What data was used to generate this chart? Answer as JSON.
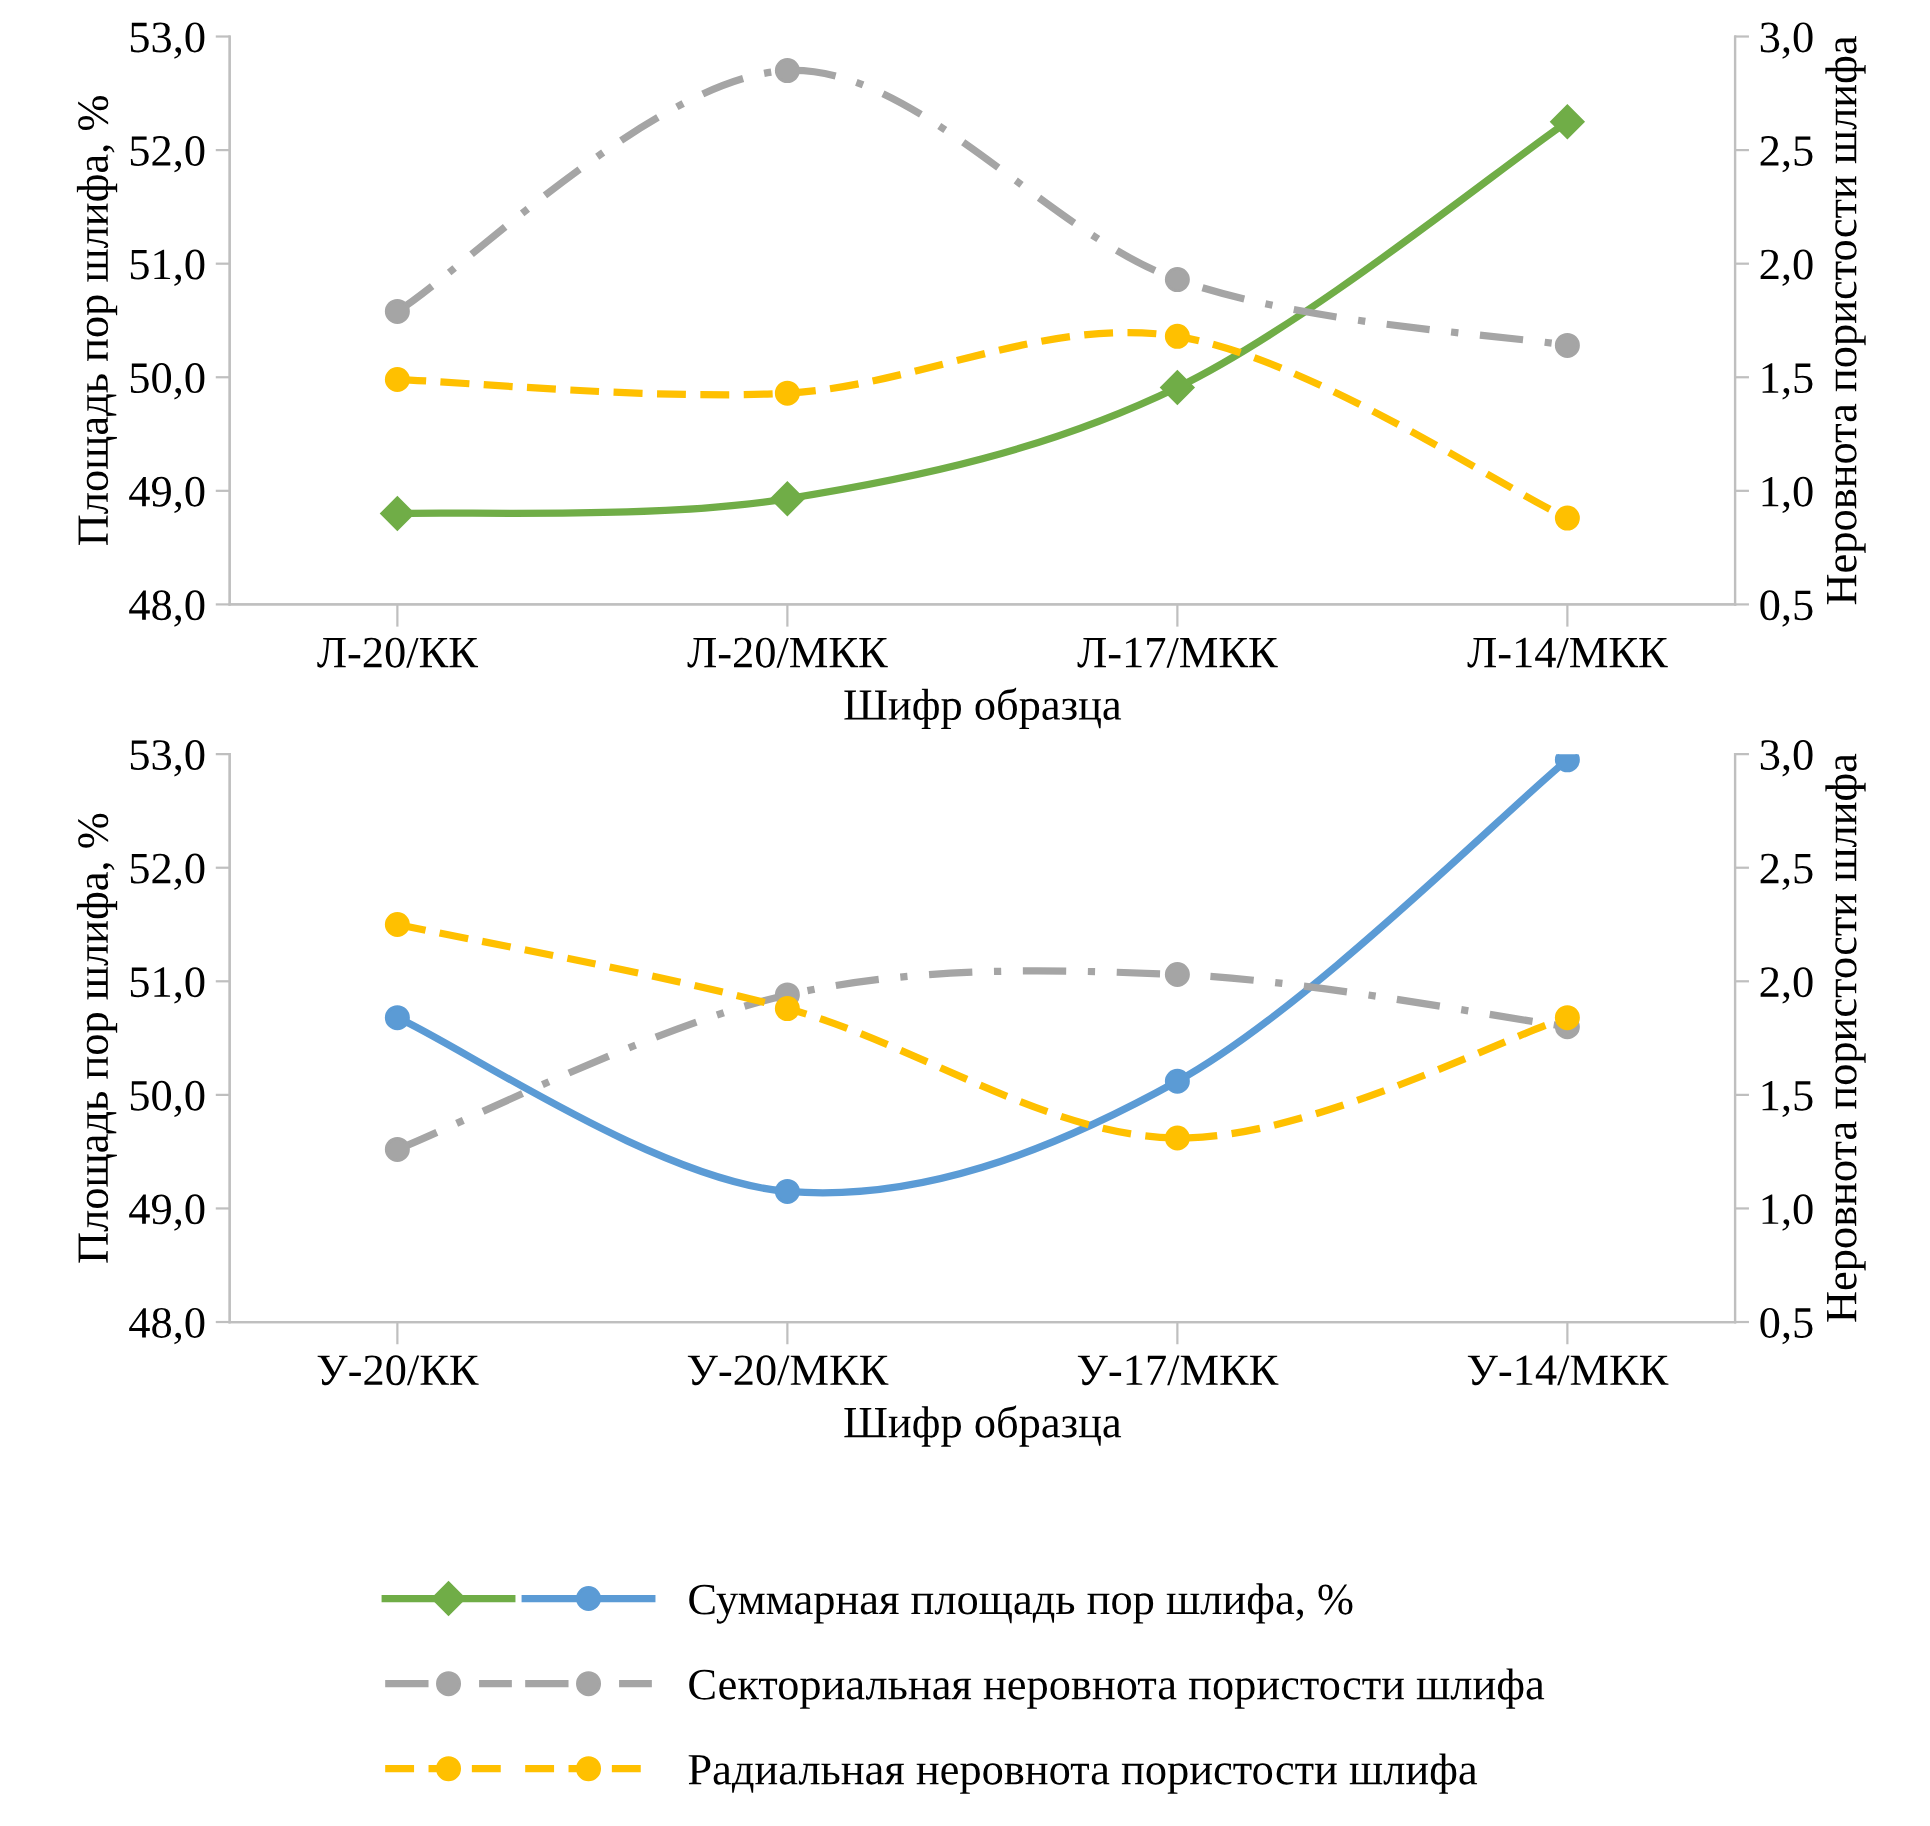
{
  "chart_data": [
    {
      "type": "line",
      "xlabel": "Шифр образца",
      "ylabel": "Площадь пор шлифа, %",
      "y2label": "Неровнота пористости шлифа",
      "categories": [
        "Л-20/КК",
        "Л-20/МКК",
        "Л-17/МКК",
        "Л-14/МКК"
      ],
      "ylim": [
        48,
        53
      ],
      "yticks": [
        {
          "value": 48,
          "label": "48,0"
        },
        {
          "value": 49,
          "label": "49,0"
        },
        {
          "value": 50,
          "label": "50,0"
        },
        {
          "value": 51,
          "label": "51,0"
        },
        {
          "value": 52,
          "label": "52,0"
        },
        {
          "value": 53,
          "label": "53,0"
        }
      ],
      "y2lim": [
        0.5,
        3
      ],
      "y2ticks": [
        {
          "value": 0.5,
          "label": "0,5"
        },
        {
          "value": 1,
          "label": "1,0"
        },
        {
          "value": 1.5,
          "label": "1,5"
        },
        {
          "value": 2,
          "label": "2,0"
        },
        {
          "value": 2.5,
          "label": "2,5"
        },
        {
          "value": 3,
          "label": "3,0"
        }
      ],
      "grid": false,
      "series": [
        {
          "color": "#70ad47",
          "values": [
            48.8,
            48.93,
            49.91,
            52.25
          ],
          "marker": "diamond",
          "line_style": "solid"
        },
        {
          "color": "#a5a5a5",
          "values": [
            1.79,
            2.85,
            1.93,
            1.64
          ],
          "axis": "y2",
          "marker": "circle",
          "line_style": "dashdot"
        },
        {
          "color": "#ffc000",
          "values": [
            1.49,
            1.43,
            1.68,
            0.88
          ],
          "axis": "y2",
          "marker": "circle",
          "line_style": "dashed"
        }
      ]
    },
    {
      "type": "line",
      "xlabel": "Шифр образца",
      "ylabel": "Площадь пор шлифа, %",
      "y2label": "Неровнота пористости шлифа",
      "categories": [
        "У-20/КК",
        "У-20/МКК",
        "У-17/МКК",
        "У-14/МКК"
      ],
      "ylim": [
        48,
        53
      ],
      "yticks": [
        {
          "value": 48,
          "label": "48,0"
        },
        {
          "value": 49,
          "label": "49,0"
        },
        {
          "value": 50,
          "label": "50,0"
        },
        {
          "value": 51,
          "label": "51,0"
        },
        {
          "value": 52,
          "label": "52,0"
        },
        {
          "value": 53,
          "label": "53,0"
        }
      ],
      "y2lim": [
        0.5,
        3
      ],
      "y2ticks": [
        {
          "value": 0.5,
          "label": "0,5"
        },
        {
          "value": 1,
          "label": "1,0"
        },
        {
          "value": 1.5,
          "label": "1,5"
        },
        {
          "value": 2,
          "label": "2,0"
        },
        {
          "value": 2.5,
          "label": "2,5"
        },
        {
          "value": 3,
          "label": "3,0"
        }
      ],
      "grid": false,
      "legend": "bottom",
      "series": [
        {
          "name": "Суммарная площадь пор шлифа, %",
          "color": "#5b9bd5",
          "values": [
            50.68,
            49.15,
            50.12,
            52.95
          ],
          "marker": "circle",
          "line_style": "solid"
        },
        {
          "name": "Секториальная неровнота пористости шлифа",
          "color": "#a5a5a5",
          "values": [
            1.26,
            1.94,
            2.03,
            1.8
          ],
          "axis": "y2",
          "marker": "circle",
          "line_style": "dashdot"
        },
        {
          "name": "Радиальная неровнота пористости шлифа",
          "color": "#ffc000",
          "values": [
            2.25,
            1.88,
            1.31,
            1.84
          ],
          "axis": "y2",
          "marker": "circle",
          "line_style": "dashed"
        }
      ]
    }
  ]
}
